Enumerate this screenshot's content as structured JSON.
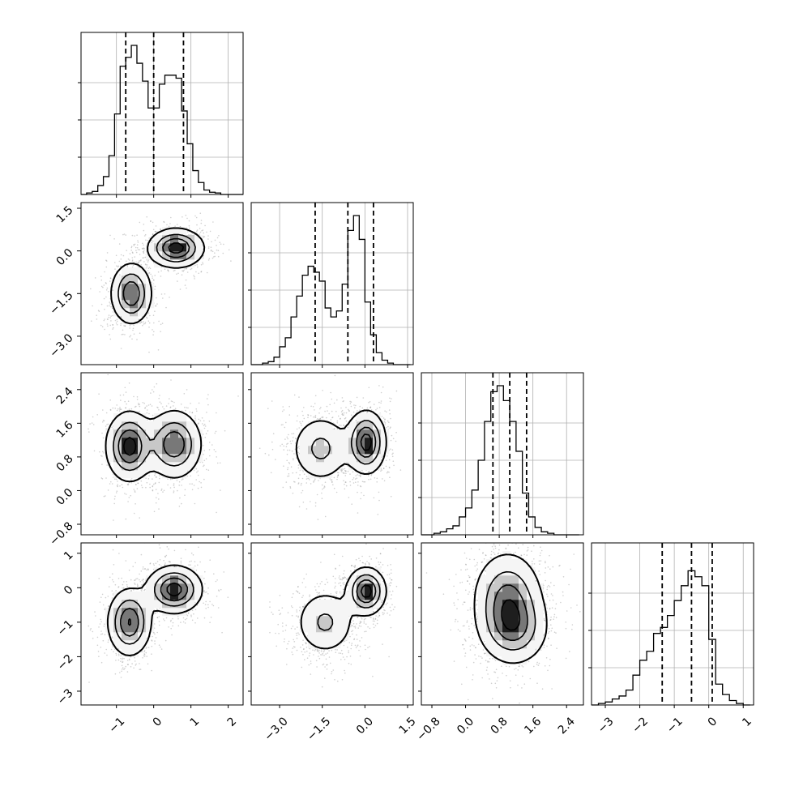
{
  "chart_data": {
    "type": "corner",
    "num_params": 4,
    "params": [
      {
        "range": [
          -1.95,
          2.4
        ],
        "ticks": [
          -1,
          0,
          1,
          2
        ],
        "tick_labels": [
          "−1",
          "0",
          "1",
          "2"
        ],
        "quantiles": [
          -0.75,
          0.0,
          0.8
        ],
        "hist_ymax": 1.0
      },
      {
        "range": [
          -4.0,
          1.7
        ],
        "ticks": [
          -3.0,
          -1.5,
          0.0,
          1.5
        ],
        "tick_labels": [
          "−3.0",
          "−1.5",
          "0.0",
          "1.5"
        ],
        "quantiles": [
          -1.75,
          -0.6,
          0.3
        ],
        "hist_ymax": 1.0
      },
      {
        "range": [
          -1.05,
          2.8
        ],
        "ticks": [
          -0.8,
          0.0,
          0.8,
          1.6,
          2.4
        ],
        "tick_labels": [
          "−0.8",
          "0.0",
          "0.8",
          "1.6",
          "2.4"
        ],
        "quantiles": [
          0.65,
          1.05,
          1.45
        ],
        "hist_ymax": 1.0
      },
      {
        "range": [
          -3.4,
          1.3
        ],
        "ticks": [
          -3,
          -2,
          -1,
          0,
          1
        ],
        "tick_labels": [
          "−3",
          "−2",
          "−1",
          "0",
          "1"
        ],
        "quantiles": [
          -1.35,
          -0.5,
          0.1
        ],
        "hist_ymax": 1.0
      }
    ],
    "histograms": [
      {
        "bins": [
          -1.95,
          -1.8,
          -1.65,
          -1.5,
          -1.35,
          -1.2,
          -1.05,
          -0.9,
          -0.75,
          -0.6,
          -0.45,
          -0.3,
          -0.15,
          0.0,
          0.15,
          0.3,
          0.45,
          0.6,
          0.75,
          0.9,
          1.05,
          1.2,
          1.35,
          1.5,
          1.65,
          1.8,
          1.95,
          2.1,
          2.25,
          2.4
        ],
        "counts": [
          0.0,
          0.01,
          0.02,
          0.06,
          0.12,
          0.26,
          0.54,
          0.86,
          0.92,
          1.0,
          0.88,
          0.76,
          0.58,
          0.58,
          0.74,
          0.8,
          0.8,
          0.78,
          0.56,
          0.34,
          0.16,
          0.08,
          0.03,
          0.015,
          0.01,
          0.0,
          0.0,
          0.0,
          0.0
        ]
      },
      {
        "bins": [
          -4.0,
          -3.8,
          -3.6,
          -3.4,
          -3.2,
          -3.0,
          -2.8,
          -2.6,
          -2.4,
          -2.2,
          -2.0,
          -1.8,
          -1.6,
          -1.4,
          -1.2,
          -1.0,
          -0.8,
          -0.6,
          -0.4,
          -0.2,
          0.0,
          0.2,
          0.4,
          0.6,
          0.8,
          1.0,
          1.2,
          1.4,
          1.6
        ],
        "counts": [
          0.0,
          0.0,
          0.01,
          0.02,
          0.05,
          0.12,
          0.18,
          0.32,
          0.46,
          0.6,
          0.66,
          0.62,
          0.56,
          0.38,
          0.32,
          0.36,
          0.54,
          0.9,
          1.0,
          0.84,
          0.42,
          0.2,
          0.08,
          0.03,
          0.01,
          0.0,
          0.0,
          0.0
        ]
      },
      {
        "bins": [
          -1.05,
          -0.9,
          -0.75,
          -0.6,
          -0.45,
          -0.3,
          -0.15,
          0.0,
          0.15,
          0.3,
          0.45,
          0.6,
          0.75,
          0.9,
          1.05,
          1.2,
          1.35,
          1.5,
          1.65,
          1.8,
          1.95,
          2.1,
          2.25,
          2.4,
          2.55,
          2.7
        ],
        "counts": [
          0.0,
          0.0,
          0.01,
          0.02,
          0.04,
          0.06,
          0.12,
          0.18,
          0.3,
          0.5,
          0.76,
          0.96,
          1.0,
          0.9,
          0.76,
          0.56,
          0.28,
          0.12,
          0.05,
          0.02,
          0.01,
          0.0,
          0.0,
          0.0,
          0.0
        ]
      },
      {
        "bins": [
          -3.4,
          -3.2,
          -3.0,
          -2.8,
          -2.6,
          -2.4,
          -2.2,
          -2.0,
          -1.8,
          -1.6,
          -1.4,
          -1.2,
          -1.0,
          -0.8,
          -0.6,
          -0.4,
          -0.2,
          0.0,
          0.2,
          0.4,
          0.6,
          0.8,
          1.0,
          1.2
        ],
        "counts": [
          0.0,
          0.01,
          0.02,
          0.04,
          0.06,
          0.1,
          0.2,
          0.3,
          0.36,
          0.48,
          0.52,
          0.6,
          0.7,
          0.8,
          0.9,
          0.86,
          0.8,
          0.44,
          0.14,
          0.07,
          0.03,
          0.01,
          0.0
        ]
      }
    ],
    "pairs": [
      {
        "row": 1,
        "col": 0,
        "modes": [
          {
            "x": -0.6,
            "y": -1.5,
            "sx": 0.28,
            "sy": 0.55,
            "w": 0.5
          },
          {
            "x": 0.6,
            "y": 0.1,
            "sx": 0.38,
            "sy": 0.35,
            "w": 0.5
          }
        ]
      },
      {
        "row": 2,
        "col": 0,
        "modes": [
          {
            "x": -0.65,
            "y": 1.05,
            "sx": 0.32,
            "sy": 0.42,
            "w": 0.5
          },
          {
            "x": 0.55,
            "y": 1.1,
            "sx": 0.38,
            "sy": 0.42,
            "w": 0.5
          }
        ]
      },
      {
        "row": 2,
        "col": 1,
        "modes": [
          {
            "x": -1.55,
            "y": 1.0,
            "sx": 0.55,
            "sy": 0.42,
            "w": 0.45
          },
          {
            "x": 0.05,
            "y": 1.15,
            "sx": 0.35,
            "sy": 0.38,
            "w": 0.55
          }
        ]
      },
      {
        "row": 3,
        "col": 0,
        "modes": [
          {
            "x": -0.65,
            "y": -1.0,
            "sx": 0.3,
            "sy": 0.5,
            "w": 0.5
          },
          {
            "x": 0.55,
            "y": -0.05,
            "sx": 0.38,
            "sy": 0.35,
            "w": 0.5
          }
        ]
      },
      {
        "row": 3,
        "col": 1,
        "modes": [
          {
            "x": -1.4,
            "y": -1.0,
            "sx": 0.55,
            "sy": 0.5,
            "w": 0.5
          },
          {
            "x": 0.05,
            "y": -0.1,
            "sx": 0.35,
            "sy": 0.35,
            "w": 0.5
          }
        ]
      },
      {
        "row": 3,
        "col": 2,
        "modes": [
          {
            "x": 1.0,
            "y": -0.3,
            "sx": 0.42,
            "sy": 0.7,
            "w": 0.6
          },
          {
            "x": 1.15,
            "y": -1.2,
            "sx": 0.42,
            "sy": 0.55,
            "w": 0.4
          }
        ]
      }
    ],
    "grid": true,
    "title": "",
    "xlabel": "",
    "ylabel": ""
  }
}
